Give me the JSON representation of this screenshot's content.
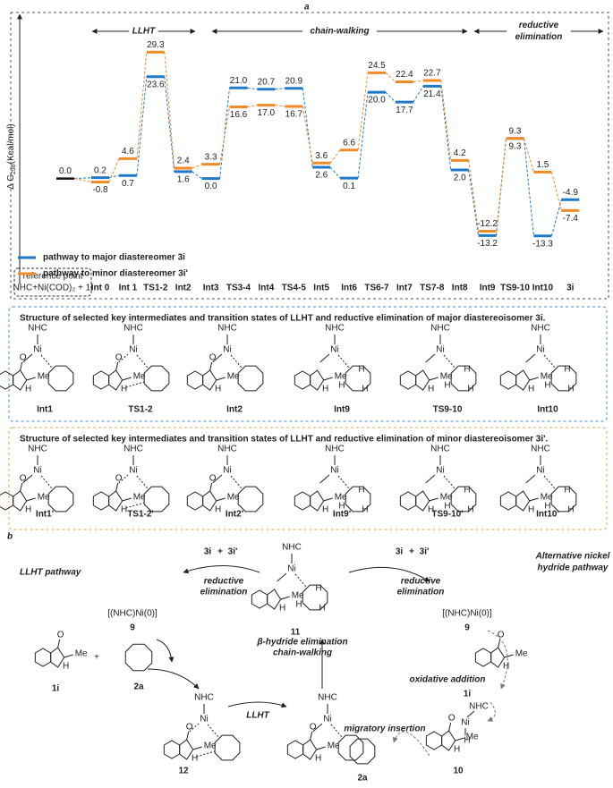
{
  "chart_data": {
    "type": "energy-profile",
    "panel_label": "a",
    "y_label": [
      "Δ G",
      "298",
      "(Kcal/mol)"
    ],
    "phases": [
      [
        "LLHT"
      ],
      [
        "chain-walking"
      ],
      [
        "reductive",
        "elimination"
      ]
    ],
    "reference": {
      "lines": [
        "reference point",
        "NHC+Ni(COD)₂ + 1i"
      ],
      "value": 0.0,
      "value_label": "0.0"
    },
    "categories": [
      "Int 0",
      "Int 1",
      "TS1-2",
      "Int2",
      "Int3",
      "TS3-4",
      "Int4",
      "TS4-5",
      "Int5",
      "Int6",
      "TS6-7",
      "Int7",
      "TS7-8",
      "Int8",
      "Int9",
      "TS9-10",
      "Int10",
      "3i"
    ],
    "series": [
      {
        "name": "pathway to major diastereomer 3i",
        "color": "#1f78c8",
        "values": [
          0.2,
          0.7,
          23.6,
          1.6,
          0.0,
          21.0,
          20.7,
          20.9,
          2.6,
          0.1,
          20.0,
          17.7,
          21.4,
          2.0,
          -13.2,
          9.3,
          -13.3,
          -4.9
        ],
        "value_labels": [
          "0.2",
          "0.7",
          "23.6",
          "1.6",
          "0.0",
          "21.0",
          "20.7",
          "20.9",
          "2.6",
          "0.1",
          "20.0",
          "17.7",
          "21.4",
          "2.0",
          "-13.2",
          "9.3",
          "-13.3",
          "-4.9"
        ]
      },
      {
        "name": "pathway to minor diastereomer 3i'",
        "color": "#f28a26",
        "values": [
          -0.8,
          4.6,
          29.3,
          2.4,
          3.3,
          16.6,
          17.0,
          16.7,
          3.6,
          6.6,
          24.5,
          22.4,
          22.7,
          4.2,
          -12.2,
          9.3,
          1.5,
          -7.4
        ],
        "value_labels": [
          "-0.8",
          "4.6",
          "29.3",
          "2.4",
          "3.3",
          "16.6",
          "17.0",
          "16.7",
          "3.6",
          "6.6",
          "24.5",
          "22.4",
          "22.7",
          "4.2",
          "-12.2",
          "9.3",
          "1.5",
          "-7.4"
        ]
      }
    ],
    "ylim": [
      -15,
      31
    ]
  },
  "major_panel": {
    "title": "Structure of selected key intermediates and transition states of LLHT and reductive elimination of major diastereoisomer 3i.",
    "labels": [
      "Int1",
      "TS1-2",
      "Int2",
      "Int9",
      "TS9-10",
      "Int10"
    ]
  },
  "minor_panel": {
    "title": "Structure of selected key intermediates and transition states of LLHT and reductive elimination of minor diastereoisomer 3i'.",
    "labels": [
      "Int1'",
      "TS1-2'",
      "Int2'",
      "Int9'",
      "TS9-10'",
      "Int10'"
    ]
  },
  "atoms": {
    "nhc": "NHC",
    "ni": "Ni",
    "o": "O",
    "me": "Me",
    "h": "H"
  },
  "scheme": {
    "panel_label": "b",
    "left_title": "LLHT pathway",
    "right_title": [
      "Alternative nickel",
      "hydride pathway"
    ],
    "products": [
      "3i",
      "+",
      "3i'"
    ],
    "reductive_elimination": [
      "reductive",
      "elimination"
    ],
    "catalyst": "[(NHC)Ni(0)]",
    "catalyst_number": "9",
    "substrate": "1i",
    "alkene": "2a",
    "plus": "+",
    "step_llht": "LLHT",
    "step_chain": [
      "β-hydride elimination",
      "chain-walking"
    ],
    "step_oxidative": "oxidative addition",
    "step_migratory": "migratory insertion",
    "compounds": [
      "12",
      "11",
      "10"
    ]
  }
}
